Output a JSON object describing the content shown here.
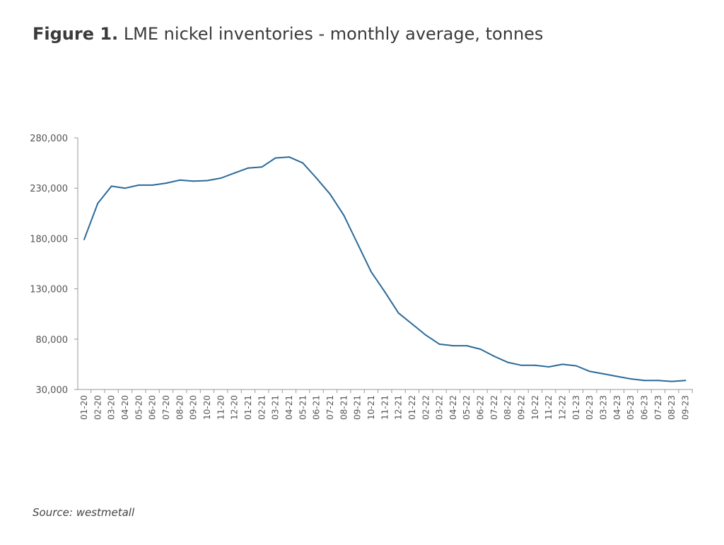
{
  "figure": {
    "label": "Figure 1.",
    "title": "LME nickel inventories - monthly average, tonnes"
  },
  "source": {
    "label": "Source:",
    "text": "westmetall"
  },
  "colors": {
    "line": "#2a6a9a",
    "axis": "#999999"
  },
  "chart_data": {
    "type": "line",
    "title": "LME nickel inventories - monthly average, tonnes",
    "xlabel": "",
    "ylabel": "",
    "ylim": [
      30000,
      280000
    ],
    "yticks": [
      30000,
      80000,
      130000,
      180000,
      230000,
      280000
    ],
    "ytick_labels": [
      "30,000",
      "80,000",
      "130,000",
      "180,000",
      "230,000",
      "280,000"
    ],
    "grid": false,
    "legend": "none",
    "categories": [
      "01-20",
      "02-20",
      "03-20",
      "04-20",
      "05-20",
      "06-20",
      "07-20",
      "08-20",
      "09-20",
      "10-20",
      "11-20",
      "12-20",
      "01-21",
      "02-21",
      "03-21",
      "04-21",
      "05-21",
      "06-21",
      "07-21",
      "08-21",
      "09-21",
      "10-21",
      "11-21",
      "12-21",
      "01-22",
      "02-22",
      "03-22",
      "04-22",
      "05-22",
      "06-22",
      "07-22",
      "08-22",
      "09-22",
      "10-22",
      "11-22",
      "12-22",
      "01-23",
      "02-23",
      "03-23",
      "04-23",
      "05-23",
      "06-23",
      "07-23",
      "08-23",
      "09-23"
    ],
    "series": [
      {
        "values": [
          179000,
          215000,
          232000,
          230000,
          233000,
          233000,
          235000,
          238000,
          237000,
          237500,
          240000,
          245000,
          250000,
          251000,
          260000,
          261000,
          255000,
          240000,
          224000,
          203000,
          175000,
          147000,
          127000,
          106000,
          95000,
          84000,
          75000,
          73500,
          73500,
          70000,
          63000,
          57000,
          54000,
          54000,
          52500,
          55000,
          53500,
          48000,
          45500,
          43000,
          40500,
          39000,
          39000,
          38000,
          39000
        ]
      }
    ]
  }
}
